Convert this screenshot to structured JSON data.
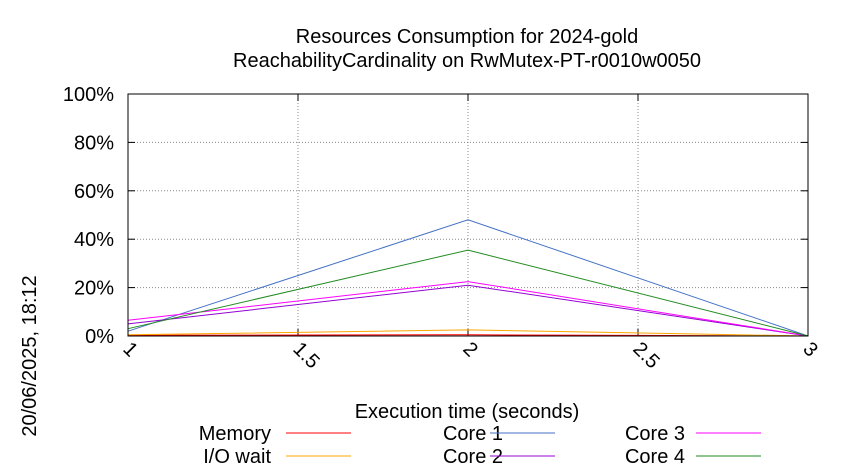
{
  "chart_data": {
    "type": "line",
    "title": [
      "Resources Consumption for 2024-gold",
      "ReachabilityCardinality on RwMutex-PT-r0010w0050"
    ],
    "xlabel": "Execution time (seconds)",
    "ylabel": "",
    "xlim": [
      1,
      3
    ],
    "ylim": [
      0,
      100
    ],
    "xticks": [
      "1",
      "1.5",
      "2",
      "2.5",
      "3"
    ],
    "yticks": [
      "0%",
      "20%",
      "40%",
      "60%",
      "80%",
      "100%"
    ],
    "grid": true,
    "legend_position": "bottom",
    "timestamp": "20/06/2025, 18:12",
    "series": [
      {
        "name": "Memory",
        "color": "#ff0000",
        "x": [
          1,
          2,
          3
        ],
        "y": [
          0.3,
          0.5,
          0
        ]
      },
      {
        "name": "I/O wait",
        "color": "#ffa500",
        "x": [
          1,
          2,
          3
        ],
        "y": [
          0.5,
          2.5,
          0
        ]
      },
      {
        "name": "Core 1",
        "color": "#4472c4",
        "x": [
          1,
          2,
          3
        ],
        "y": [
          2,
          48,
          0
        ]
      },
      {
        "name": "Core 2",
        "color": "#9400d3",
        "x": [
          1,
          2,
          3
        ],
        "y": [
          5,
          21,
          0
        ]
      },
      {
        "name": "Core 3",
        "color": "#ff00ff",
        "x": [
          1,
          2,
          3
        ],
        "y": [
          6.5,
          22.5,
          0
        ]
      },
      {
        "name": "Core 4",
        "color": "#228b22",
        "x": [
          1,
          2,
          3
        ],
        "y": [
          3,
          35.5,
          0
        ]
      }
    ]
  }
}
